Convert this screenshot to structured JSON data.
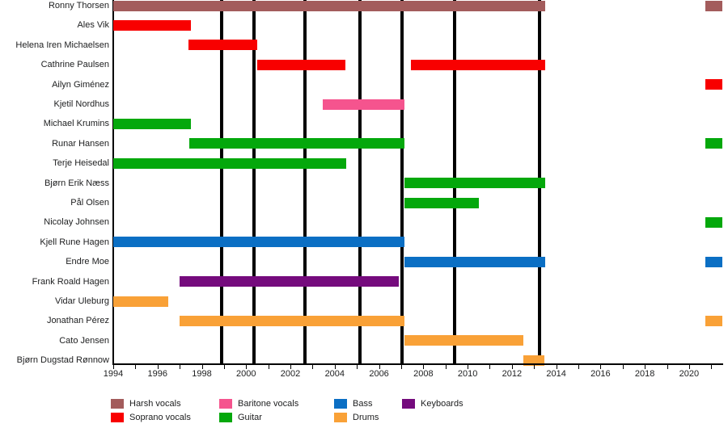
{
  "chart_data": {
    "type": "timeline",
    "description": "Band members timeline (Gantt-style) with instrument roles and album release lines",
    "x_axis": {
      "min": 1994,
      "max": 2021.5,
      "labeled_ticks": [
        1994,
        1996,
        1998,
        2000,
        2002,
        2004,
        2006,
        2008,
        2010,
        2012,
        2014,
        2016,
        2018,
        2020
      ],
      "minor_tick_step": 1,
      "minor_tick_end": 2021
    },
    "album_release_lines": [
      1998.9,
      2000.35,
      2002.65,
      2005.15,
      2007.05,
      2009.4,
      2013.25
    ],
    "members": [
      {
        "name": "Ronny Thorsen",
        "instrument": "harsh",
        "periods": [
          [
            1994,
            2013.5
          ],
          [
            2020.75,
            2021.5
          ]
        ]
      },
      {
        "name": "Ales Vik",
        "instrument": "soprano",
        "periods": [
          [
            1994,
            1997.5
          ]
        ]
      },
      {
        "name": "Helena Iren Michaelsen",
        "instrument": "soprano",
        "periods": [
          [
            1997.4,
            2000.5
          ]
        ]
      },
      {
        "name": "Cathrine Paulsen",
        "instrument": "soprano",
        "periods": [
          [
            2000.5,
            2004.5
          ],
          [
            2007.45,
            2013.5
          ]
        ]
      },
      {
        "name": "Ailyn Giménez",
        "instrument": "soprano",
        "periods": [
          [
            2020.75,
            2021.5
          ]
        ]
      },
      {
        "name": "Kjetil Nordhus",
        "instrument": "baritone",
        "periods": [
          [
            2003.45,
            2007.15
          ]
        ]
      },
      {
        "name": "Michael Krumins",
        "instrument": "guitar",
        "periods": [
          [
            1994,
            1997.5
          ]
        ]
      },
      {
        "name": "Runar Hansen",
        "instrument": "guitar",
        "periods": [
          [
            1997.45,
            2007.15
          ],
          [
            2020.75,
            2021.5
          ]
        ]
      },
      {
        "name": "Terje Heisedal",
        "instrument": "guitar",
        "periods": [
          [
            1994,
            2004.5
          ]
        ]
      },
      {
        "name": "Bjørn Erik Næss",
        "instrument": "guitar",
        "periods": [
          [
            2007.15,
            2013.5
          ]
        ]
      },
      {
        "name": "Pål Olsen",
        "instrument": "guitar",
        "periods": [
          [
            2007.15,
            2010.5
          ]
        ]
      },
      {
        "name": "Nicolay Johnsen",
        "instrument": "guitar",
        "periods": [
          [
            2020.75,
            2021.5
          ]
        ]
      },
      {
        "name": "Kjell Rune Hagen",
        "instrument": "bass",
        "periods": [
          [
            1994,
            2007.15
          ]
        ]
      },
      {
        "name": "Endre Moe",
        "instrument": "bass",
        "periods": [
          [
            2007.15,
            2013.5
          ],
          [
            2020.75,
            2021.5
          ]
        ]
      },
      {
        "name": "Frank Roald Hagen",
        "instrument": "keyboards",
        "periods": [
          [
            1997.0,
            2006.9
          ]
        ]
      },
      {
        "name": "Vidar Uleburg",
        "instrument": "drums",
        "periods": [
          [
            1994,
            1996.5
          ]
        ]
      },
      {
        "name": "Jonathan Pérez",
        "instrument": "drums",
        "periods": [
          [
            1997.0,
            2007.15
          ],
          [
            2020.75,
            2021.5
          ]
        ]
      },
      {
        "name": "Cato Jensen",
        "instrument": "drums",
        "periods": [
          [
            2007.15,
            2012.5
          ]
        ]
      },
      {
        "name": "Bjørn Dugstad Rønnow",
        "instrument": "drums",
        "periods": [
          [
            2012.5,
            2013.45
          ]
        ]
      }
    ],
    "legend": {
      "position": "bottom",
      "columns": [
        {
          "items": [
            {
              "key": "harsh",
              "label": "Harsh vocals"
            },
            {
              "key": "soprano",
              "label": "Soprano vocals"
            }
          ]
        },
        {
          "items": [
            {
              "key": "baritone",
              "label": "Baritone vocals"
            },
            {
              "key": "guitar",
              "label": "Guitar"
            }
          ]
        },
        {
          "items": [
            {
              "key": "bass",
              "label": "Bass"
            },
            {
              "key": "drums",
              "label": "Drums"
            }
          ]
        },
        {
          "items": [
            {
              "key": "keyboards",
              "label": "Keyboards"
            }
          ]
        }
      ]
    },
    "colors": {
      "harsh": "#a35c5c",
      "soprano": "#f80000",
      "baritone": "#f5548e",
      "guitar": "#04a80c",
      "bass": "#0b6fc4",
      "keyboards": "#750b7d",
      "drums": "#f9a137",
      "line": "#000000",
      "text": "#202122"
    },
    "grid": false
  }
}
